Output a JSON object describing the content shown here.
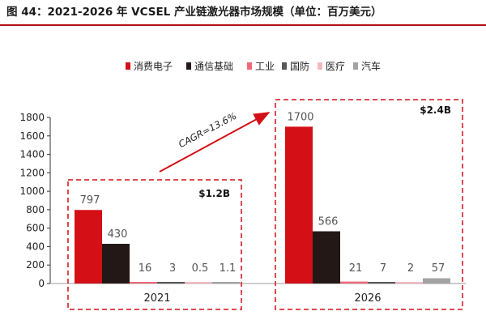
{
  "title": "图 44：2021-2026 年 VCSEL 产业链激光器市场规模（单位：百万美元）",
  "chart_data": {
    "type": "bar",
    "categories": [
      "2021",
      "2026"
    ],
    "series": [
      {
        "name": "消费电子",
        "color": "#d40f16",
        "values": [
          797,
          1700
        ],
        "labels": [
          "797",
          "1700"
        ]
      },
      {
        "name": "通信基础",
        "color": "#231816",
        "values": [
          430,
          566
        ],
        "labels": [
          "430",
          "566"
        ]
      },
      {
        "name": "工业",
        "color": "#f06878",
        "values": [
          16,
          21
        ],
        "labels": [
          "16",
          "21"
        ]
      },
      {
        "name": "国防",
        "color": "#595757",
        "values": [
          3,
          7
        ],
        "labels": [
          "3",
          "7"
        ]
      },
      {
        "name": "医疗",
        "color": "#f5b8c0",
        "values": [
          0.5,
          2
        ],
        "labels": [
          "0.5",
          "2"
        ]
      },
      {
        "name": "汽车",
        "color": "#a3a3a3",
        "values": [
          1.1,
          57
        ],
        "labels": [
          "1.1",
          "57"
        ]
      }
    ],
    "ylim": [
      0,
      1800
    ],
    "yticks": [
      0,
      200,
      400,
      600,
      800,
      1000,
      1200,
      1400,
      1600,
      1800
    ],
    "totals": [
      "$1.2B",
      "$2.4B"
    ],
    "annotation": "CAGR=13.6%",
    "legend_position": "top",
    "grid": false,
    "accent_color": "#d40f16"
  }
}
